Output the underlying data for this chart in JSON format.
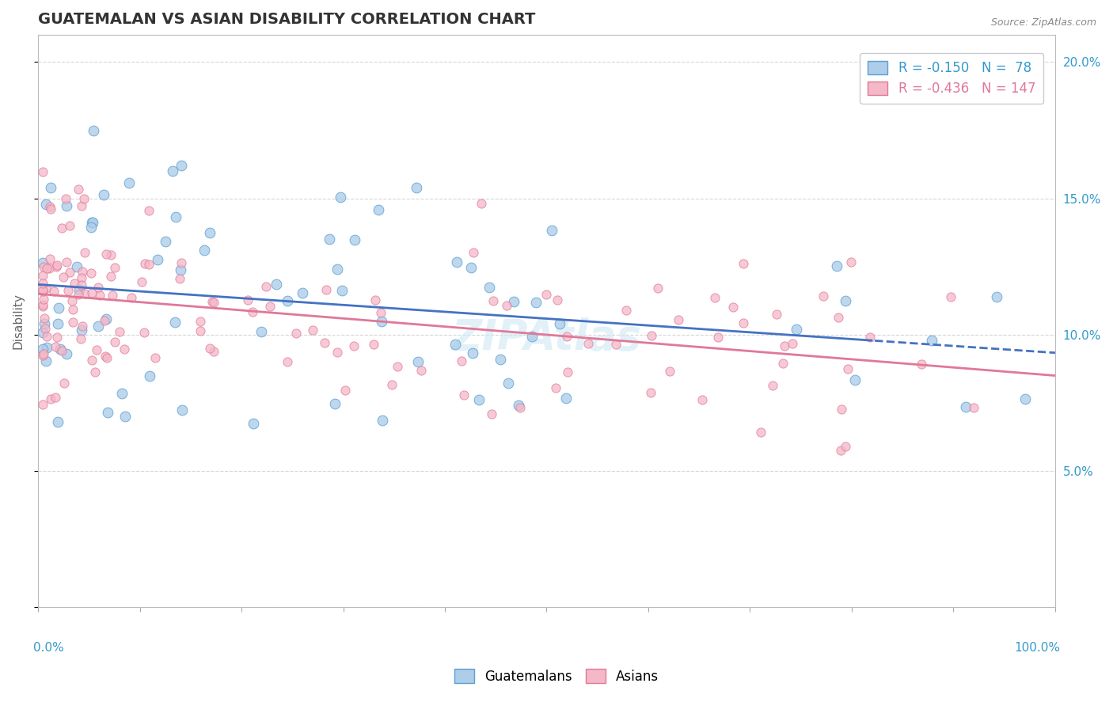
{
  "title": "GUATEMALAN VS ASIAN DISABILITY CORRELATION CHART",
  "source": "Source: ZipAtlas.com",
  "ylabel": "Disability",
  "xlim": [
    0,
    100
  ],
  "ylim": [
    0,
    21
  ],
  "guatemalan_color": "#aecde8",
  "guatemalan_edge": "#5b9fd4",
  "asian_color": "#f4b8c8",
  "asian_edge": "#e07898",
  "trend_guatemalan_color": "#4472c4",
  "trend_asian_color": "#e07898",
  "r_guatemalan": -0.15,
  "n_guatemalan": 78,
  "r_asian": -0.436,
  "n_asian": 147,
  "background_color": "#ffffff",
  "grid_color": "#cccccc",
  "title_color": "#333333",
  "axis_label_color": "#3399cc",
  "ylabel_color": "#666666",
  "watermark_color": "#d0e8f4",
  "legend_blue_text": "#3399cc",
  "legend_pink_text": "#e07898",
  "source_color": "#888888"
}
